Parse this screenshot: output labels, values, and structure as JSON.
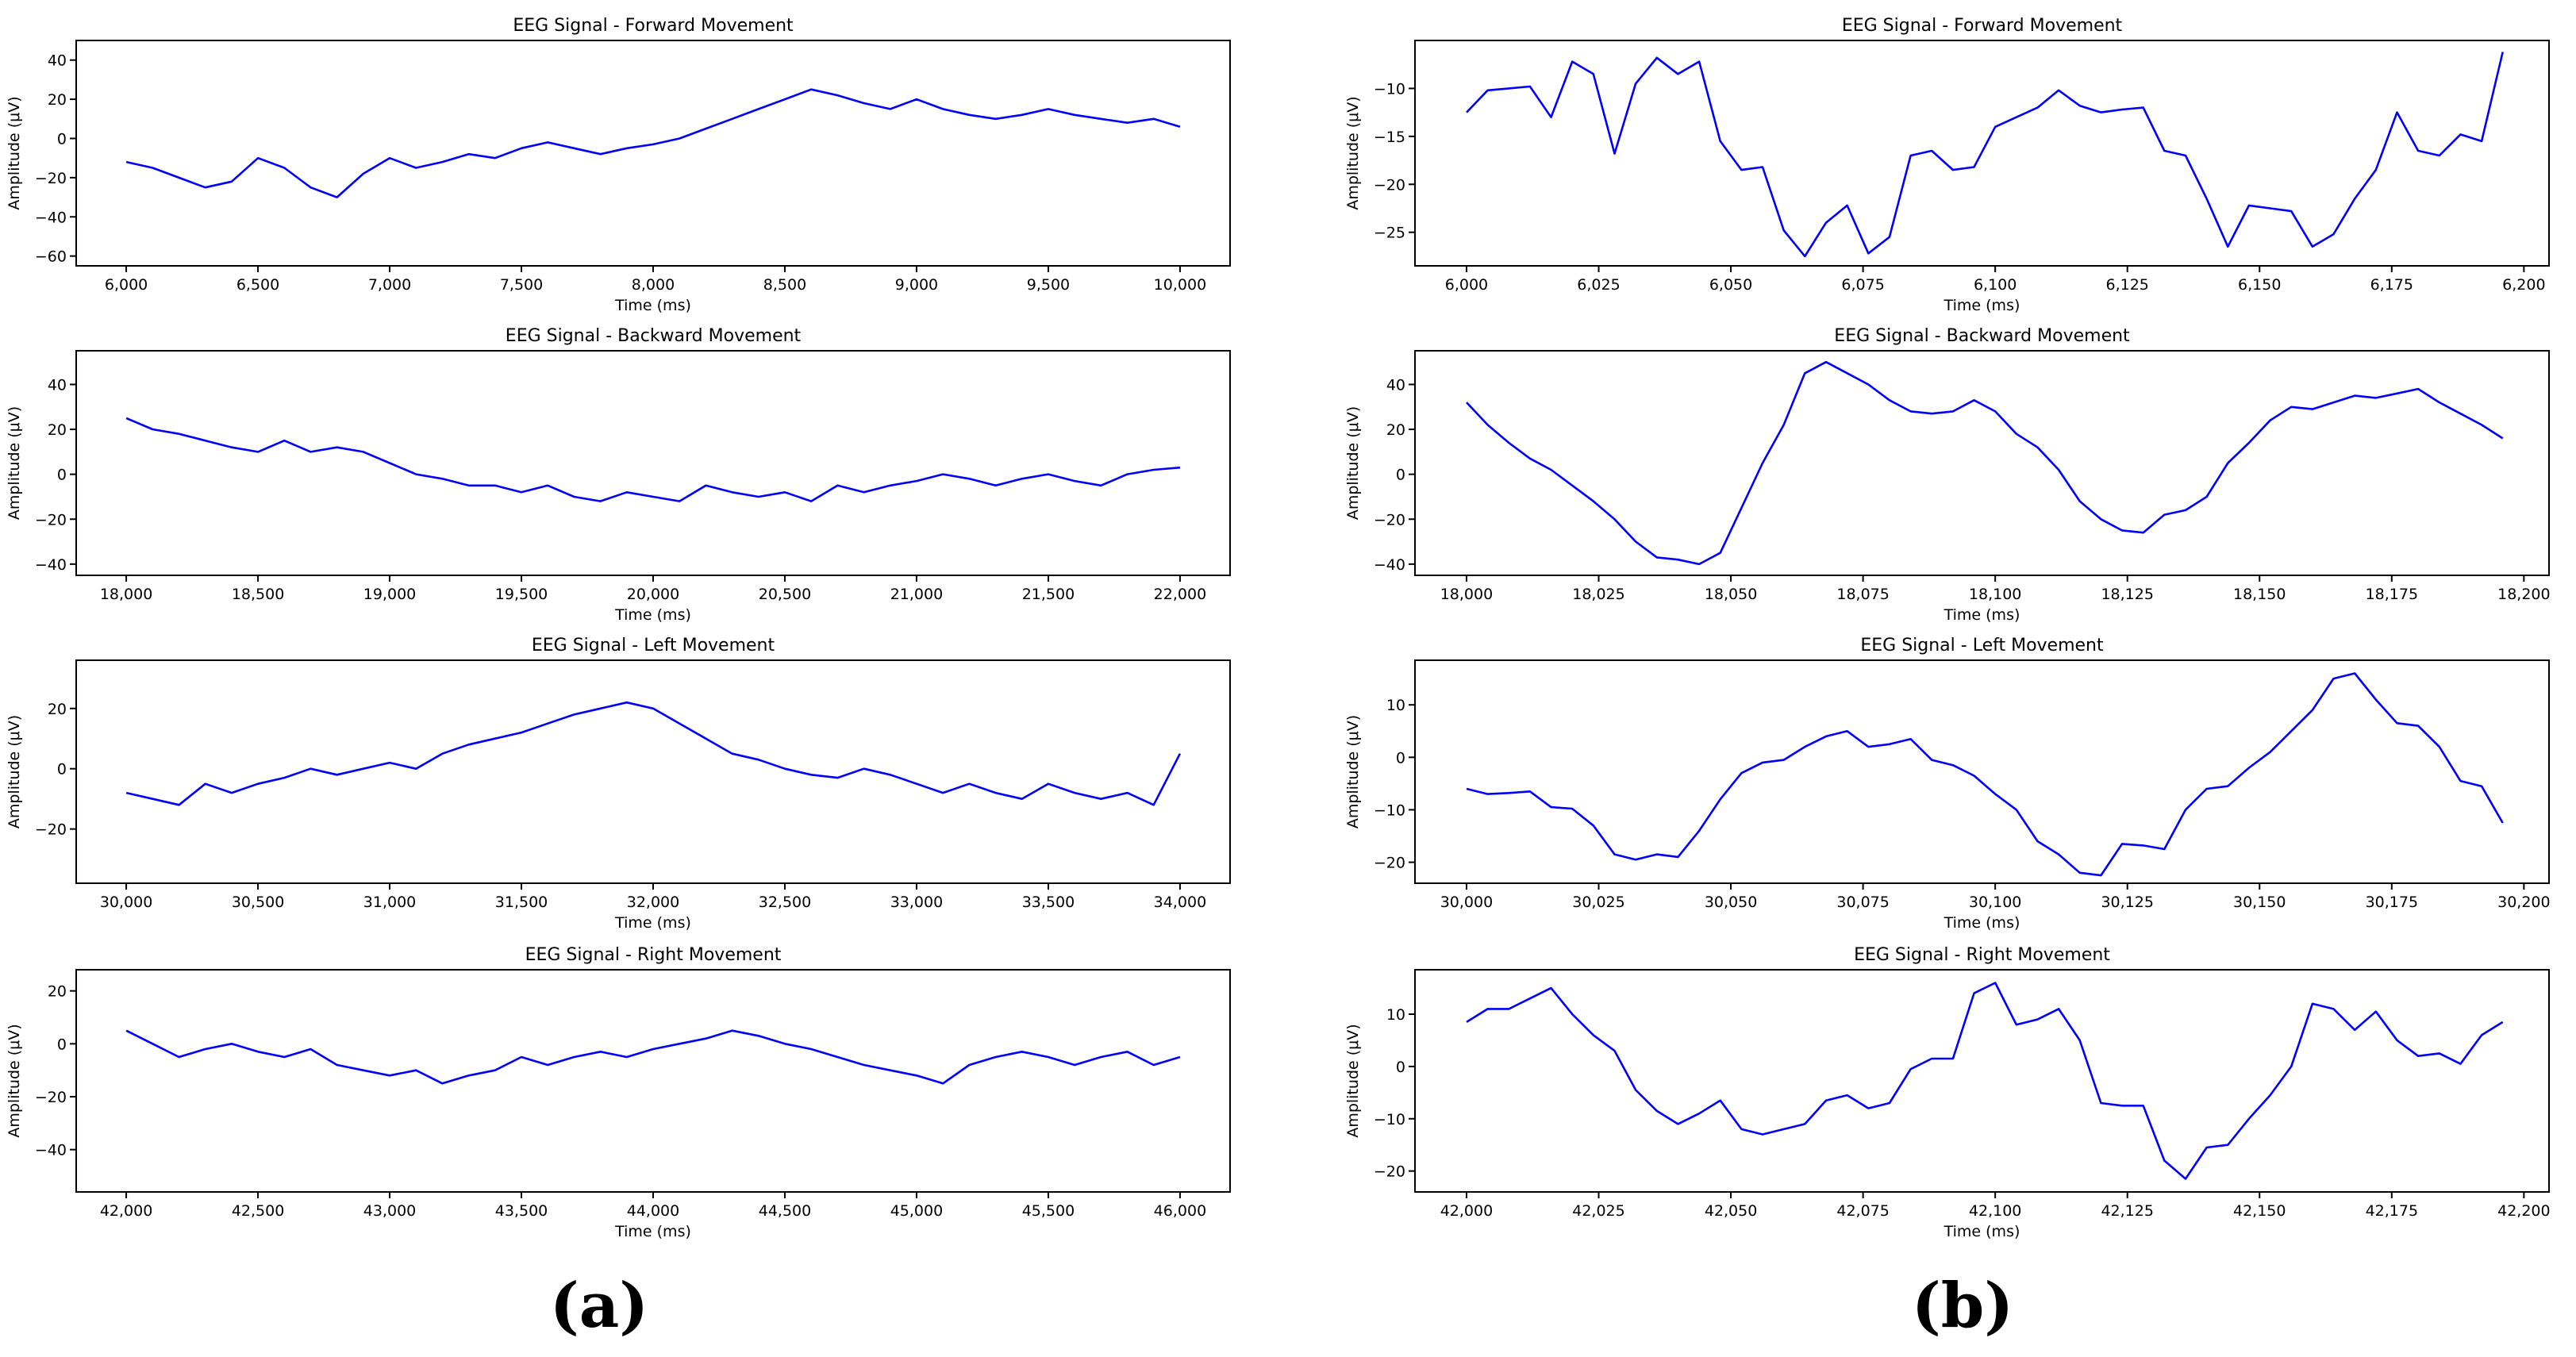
{
  "chart_data": [
    {
      "type": "line",
      "panel": "a",
      "row": 0,
      "title": "EEG Signal - Forward Movement",
      "xlabel": "Time (ms)",
      "ylabel": "Amplitude (μV)",
      "xlim": [
        5810,
        10190
      ],
      "ylim": [
        -65,
        50
      ],
      "xticks": [
        6000,
        6500,
        7000,
        7500,
        8000,
        8500,
        9000,
        9500,
        10000
      ],
      "yticks": [
        -60,
        -40,
        -20,
        0,
        20,
        40
      ],
      "color": "#0000ff",
      "x": [
        6000,
        6100,
        6200,
        6300,
        6400,
        6500,
        6600,
        6700,
        6800,
        6900,
        7000,
        7100,
        7200,
        7300,
        7400,
        7500,
        7600,
        7700,
        7800,
        7900,
        8000,
        8100,
        8200,
        8300,
        8400,
        8500,
        8600,
        8700,
        8800,
        8900,
        9000,
        9100,
        9200,
        9300,
        9400,
        9500,
        9600,
        9700,
        9800,
        9900,
        10000
      ],
      "y": [
        -12,
        -15,
        -20,
        -25,
        -22,
        -10,
        -15,
        -25,
        -30,
        -18,
        -10,
        -15,
        -12,
        -8,
        -10,
        -5,
        -2,
        -5,
        -8,
        -5,
        -3,
        0,
        5,
        10,
        15,
        20,
        25,
        22,
        18,
        15,
        20,
        15,
        12,
        10,
        12,
        15,
        12,
        10,
        8,
        10,
        6
      ]
    },
    {
      "type": "line",
      "panel": "a",
      "row": 1,
      "title": "EEG Signal - Backward Movement",
      "xlabel": "Time (ms)",
      "ylabel": "Amplitude (μV)",
      "xlim": [
        17810,
        22190
      ],
      "ylim": [
        -45,
        55
      ],
      "xticks": [
        18000,
        18500,
        19000,
        19500,
        20000,
        20500,
        21000,
        21500,
        22000
      ],
      "yticks": [
        -40,
        -20,
        0,
        20,
        40
      ],
      "color": "#0000ff",
      "x": [
        18000,
        18100,
        18200,
        18300,
        18400,
        18500,
        18600,
        18700,
        18800,
        18900,
        19000,
        19100,
        19200,
        19300,
        19400,
        19500,
        19600,
        19700,
        19800,
        19900,
        20000,
        20100,
        20200,
        20300,
        20400,
        20500,
        20600,
        20700,
        20800,
        20900,
        21000,
        21100,
        21200,
        21300,
        21400,
        21500,
        21600,
        21700,
        21800,
        21900,
        22000
      ],
      "y": [
        25,
        20,
        18,
        15,
        12,
        10,
        15,
        10,
        12,
        10,
        5,
        0,
        -2,
        -5,
        -5,
        -8,
        -5,
        -10,
        -12,
        -8,
        -10,
        -12,
        -5,
        -8,
        -10,
        -8,
        -12,
        -5,
        -8,
        -5,
        -3,
        0,
        -2,
        -5,
        -2,
        0,
        -3,
        -5,
        0,
        2,
        3
      ]
    },
    {
      "type": "line",
      "panel": "a",
      "row": 2,
      "title": "EEG Signal - Left Movement",
      "xlabel": "Time (ms)",
      "ylabel": "Amplitude (μV)",
      "xlim": [
        29810,
        34190
      ],
      "ylim": [
        -38,
        36
      ],
      "xticks": [
        30000,
        30500,
        31000,
        31500,
        32000,
        32500,
        33000,
        33500,
        34000
      ],
      "yticks": [
        -20,
        0,
        20
      ],
      "color": "#0000ff",
      "x": [
        30000,
        30100,
        30200,
        30300,
        30400,
        30500,
        30600,
        30700,
        30800,
        30900,
        31000,
        31100,
        31200,
        31300,
        31400,
        31500,
        31600,
        31700,
        31800,
        31900,
        32000,
        32100,
        32200,
        32300,
        32400,
        32500,
        32600,
        32700,
        32800,
        32900,
        33000,
        33100,
        33200,
        33300,
        33400,
        33500,
        33600,
        33700,
        33800,
        33900,
        34000
      ],
      "y": [
        -8,
        -10,
        -12,
        -5,
        -8,
        -5,
        -3,
        0,
        -2,
        0,
        2,
        0,
        5,
        8,
        10,
        12,
        15,
        18,
        20,
        22,
        20,
        15,
        10,
        5,
        3,
        0,
        -2,
        -3,
        0,
        -2,
        -5,
        -8,
        -5,
        -8,
        -10,
        -5,
        -8,
        -10,
        -8,
        -12,
        5
      ]
    },
    {
      "type": "line",
      "panel": "a",
      "row": 3,
      "title": "EEG Signal - Right Movement",
      "xlabel": "Time (ms)",
      "ylabel": "Amplitude (μV)",
      "xlim": [
        41810,
        46190
      ],
      "ylim": [
        -56,
        28
      ],
      "xticks": [
        42000,
        42500,
        43000,
        43500,
        44000,
        44500,
        45000,
        45500,
        46000
      ],
      "yticks": [
        -40,
        -20,
        0,
        20
      ],
      "color": "#0000ff",
      "x": [
        42000,
        42100,
        42200,
        42300,
        42400,
        42500,
        42600,
        42700,
        42800,
        42900,
        43000,
        43100,
        43200,
        43300,
        43400,
        43500,
        43600,
        43700,
        43800,
        43900,
        44000,
        44100,
        44200,
        44300,
        44400,
        44500,
        44600,
        44700,
        44800,
        44900,
        45000,
        45100,
        45200,
        45300,
        45400,
        45500,
        45600,
        45700,
        45800,
        45900,
        46000
      ],
      "y": [
        5,
        0,
        -5,
        -2,
        0,
        -3,
        -5,
        -2,
        -8,
        -10,
        -12,
        -10,
        -15,
        -12,
        -10,
        -5,
        -8,
        -5,
        -3,
        -5,
        -2,
        0,
        2,
        5,
        3,
        0,
        -2,
        -5,
        -8,
        -10,
        -12,
        -15,
        -8,
        -5,
        -3,
        -5,
        -8,
        -5,
        -3,
        -8,
        -5
      ]
    },
    {
      "type": "line",
      "panel": "b",
      "row": 0,
      "title": "EEG Signal - Forward Movement",
      "xlabel": "Time (ms)",
      "ylabel": "Amplitude (μV)",
      "xlim": [
        5990.25,
        6204.75
      ],
      "ylim": [
        -28.5,
        -5
      ],
      "xticks": [
        6000,
        6025,
        6050,
        6075,
        6100,
        6125,
        6150,
        6175,
        6200
      ],
      "yticks": [
        -25,
        -20,
        -15,
        -10
      ],
      "color": "#0000ff",
      "x": [
        6000,
        6004,
        6008,
        6012,
        6016,
        6020,
        6024,
        6028,
        6032,
        6036,
        6040,
        6044,
        6048,
        6052,
        6056,
        6060,
        6064,
        6068,
        6072,
        6076,
        6080,
        6084,
        6088,
        6092,
        6096,
        6100,
        6104,
        6108,
        6112,
        6116,
        6120,
        6124,
        6128,
        6132,
        6136,
        6140,
        6144,
        6148,
        6152,
        6156,
        6160,
        6164,
        6168,
        6172,
        6176,
        6180,
        6184,
        6188,
        6192,
        6196
      ],
      "y": [
        -12.5,
        -10.2,
        -10,
        -9.8,
        -13,
        -7.2,
        -8.5,
        -16.8,
        -9.5,
        -6.8,
        -8.5,
        -7.2,
        -15.5,
        -18.5,
        -18.2,
        -24.8,
        -27.5,
        -24,
        -22.2,
        -27.2,
        -25.5,
        -17,
        -16.5,
        -18.5,
        -18.2,
        -14,
        -13,
        -12,
        -10.2,
        -11.8,
        -12.5,
        -12.2,
        -12,
        -16.5,
        -17,
        -21.5,
        -26.5,
        -22.2,
        -22.5,
        -22.8,
        -26.5,
        -25.2,
        -21.5,
        -18.5,
        -12.5,
        -16.5,
        -17,
        -14.8,
        -15.5,
        -6.2
      ]
    },
    {
      "type": "line",
      "panel": "b",
      "row": 1,
      "title": "EEG Signal - Backward Movement",
      "xlabel": "Time (ms)",
      "ylabel": "Amplitude (μV)",
      "xlim": [
        17990.25,
        18204.75
      ],
      "ylim": [
        -45,
        55
      ],
      "xticks": [
        18000,
        18025,
        18050,
        18075,
        18100,
        18125,
        18150,
        18175,
        18200
      ],
      "yticks": [
        -40,
        -20,
        0,
        20,
        40
      ],
      "color": "#0000ff",
      "x": [
        18000,
        18004,
        18008,
        18012,
        18016,
        18020,
        18024,
        18028,
        18032,
        18036,
        18040,
        18044,
        18048,
        18052,
        18056,
        18060,
        18064,
        18068,
        18072,
        18076,
        18080,
        18084,
        18088,
        18092,
        18096,
        18100,
        18104,
        18108,
        18112,
        18116,
        18120,
        18124,
        18128,
        18132,
        18136,
        18140,
        18144,
        18148,
        18152,
        18156,
        18160,
        18164,
        18168,
        18172,
        18176,
        18180,
        18184,
        18188,
        18192,
        18196
      ],
      "y": [
        32,
        22,
        14,
        7,
        2,
        -5,
        -12,
        -20,
        -30,
        -37,
        -38,
        -40,
        -35,
        -15,
        5,
        22,
        45,
        50,
        45,
        40,
        33,
        28,
        27,
        28,
        33,
        28,
        18,
        12,
        2,
        -12,
        -20,
        -25,
        -26,
        -18,
        -16,
        -10,
        5,
        14,
        24,
        30,
        29,
        32,
        35,
        34,
        36,
        38,
        32,
        27,
        22,
        16
      ]
    },
    {
      "type": "line",
      "panel": "b",
      "row": 2,
      "title": "EEG Signal - Left Movement",
      "xlabel": "Time (ms)",
      "ylabel": "Amplitude (μV)",
      "xlim": [
        29990.25,
        30204.75
      ],
      "ylim": [
        -24,
        18.5
      ],
      "xticks": [
        30000,
        30025,
        30050,
        30075,
        30100,
        30125,
        30150,
        30175,
        30200
      ],
      "yticks": [
        -20,
        -10,
        0,
        10
      ],
      "color": "#0000ff",
      "x": [
        30000,
        30004,
        30008,
        30012,
        30016,
        30020,
        30024,
        30028,
        30032,
        30036,
        30040,
        30044,
        30048,
        30052,
        30056,
        30060,
        30064,
        30068,
        30072,
        30076,
        30080,
        30084,
        30088,
        30092,
        30096,
        30100,
        30104,
        30108,
        30112,
        30116,
        30120,
        30124,
        30128,
        30132,
        30136,
        30140,
        30144,
        30148,
        30152,
        30156,
        30160,
        30164,
        30168,
        30172,
        30176,
        30180,
        30184,
        30188,
        30192,
        30196
      ],
      "y": [
        -6,
        -7,
        -6.8,
        -6.5,
        -9.5,
        -9.8,
        -13,
        -18.5,
        -19.5,
        -18.5,
        -19,
        -14,
        -8,
        -3,
        -1,
        -0.5,
        2,
        4,
        5,
        2,
        2.5,
        3.5,
        -0.5,
        -1.5,
        -3.5,
        -7,
        -10,
        -16,
        -18.5,
        -22,
        -22.5,
        -16.5,
        -16.8,
        -17.5,
        -10,
        -6,
        -5.5,
        -2,
        1,
        5,
        9,
        15,
        16,
        11,
        6.5,
        6,
        2,
        -4.5,
        -5.5,
        -12.5
      ]
    },
    {
      "type": "line",
      "panel": "b",
      "row": 3,
      "title": "EEG Signal - Right Movement",
      "xlabel": "Time (ms)",
      "ylabel": "Amplitude (μV)",
      "xlim": [
        41990.25,
        42204.75
      ],
      "ylim": [
        -24,
        18.5
      ],
      "xticks": [
        42000,
        42025,
        42050,
        42075,
        42100,
        42125,
        42150,
        42175,
        42200
      ],
      "yticks": [
        -20,
        -10,
        0,
        10
      ],
      "color": "#0000ff",
      "x": [
        42000,
        42004,
        42008,
        42012,
        42016,
        42020,
        42024,
        42028,
        42032,
        42036,
        42040,
        42044,
        42048,
        42052,
        42056,
        42060,
        42064,
        42068,
        42072,
        42076,
        42080,
        42084,
        42088,
        42092,
        42096,
        42100,
        42104,
        42108,
        42112,
        42116,
        42120,
        42124,
        42128,
        42132,
        42136,
        42140,
        42144,
        42148,
        42152,
        42156,
        42160,
        42164,
        42168,
        42172,
        42176,
        42180,
        42184,
        42188,
        42192,
        42196
      ],
      "y": [
        8.5,
        11,
        11,
        13,
        15,
        10,
        6,
        3,
        -4.5,
        -8.5,
        -11,
        -9,
        -6.5,
        -12,
        -13,
        -12,
        -11,
        -6.5,
        -5.5,
        -8,
        -7,
        -0.5,
        1.5,
        1.5,
        14,
        16,
        8,
        9,
        11,
        5,
        -7,
        -7.5,
        -7.5,
        -18,
        -21.5,
        -15.5,
        -15,
        -10,
        -5.5,
        0,
        12,
        11,
        7,
        10.5,
        5,
        2,
        2.5,
        0.5,
        6,
        8.5
      ]
    }
  ],
  "panel_labels": [
    "(a)",
    "(b)"
  ]
}
